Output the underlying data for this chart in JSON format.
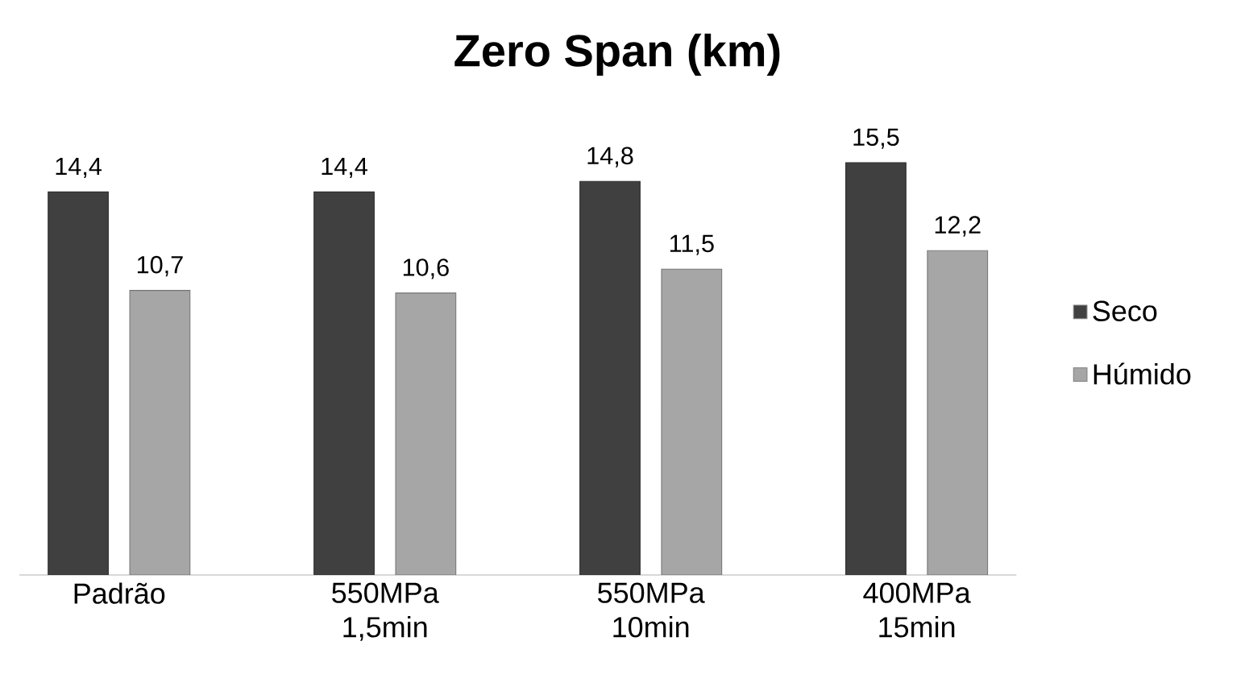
{
  "chart_data": {
    "type": "bar",
    "title": "Zero Span (km)",
    "categories": [
      "Padrão",
      "550MPa 1,5min",
      "550MPa 10min",
      "400MPa 15min"
    ],
    "series": [
      {
        "name": "Seco",
        "color": "#404040",
        "values": [
          14.4,
          14.4,
          14.8,
          15.5
        ],
        "value_labels": [
          "14,4",
          "14,4",
          "14,8",
          "15,5"
        ]
      },
      {
        "name": "Húmido",
        "color": "#a6a6a6",
        "values": [
          10.7,
          10.6,
          11.5,
          12.2
        ],
        "value_labels": [
          "10,7",
          "10,6",
          "11,5",
          "12,2"
        ]
      }
    ],
    "legend": "right"
  }
}
